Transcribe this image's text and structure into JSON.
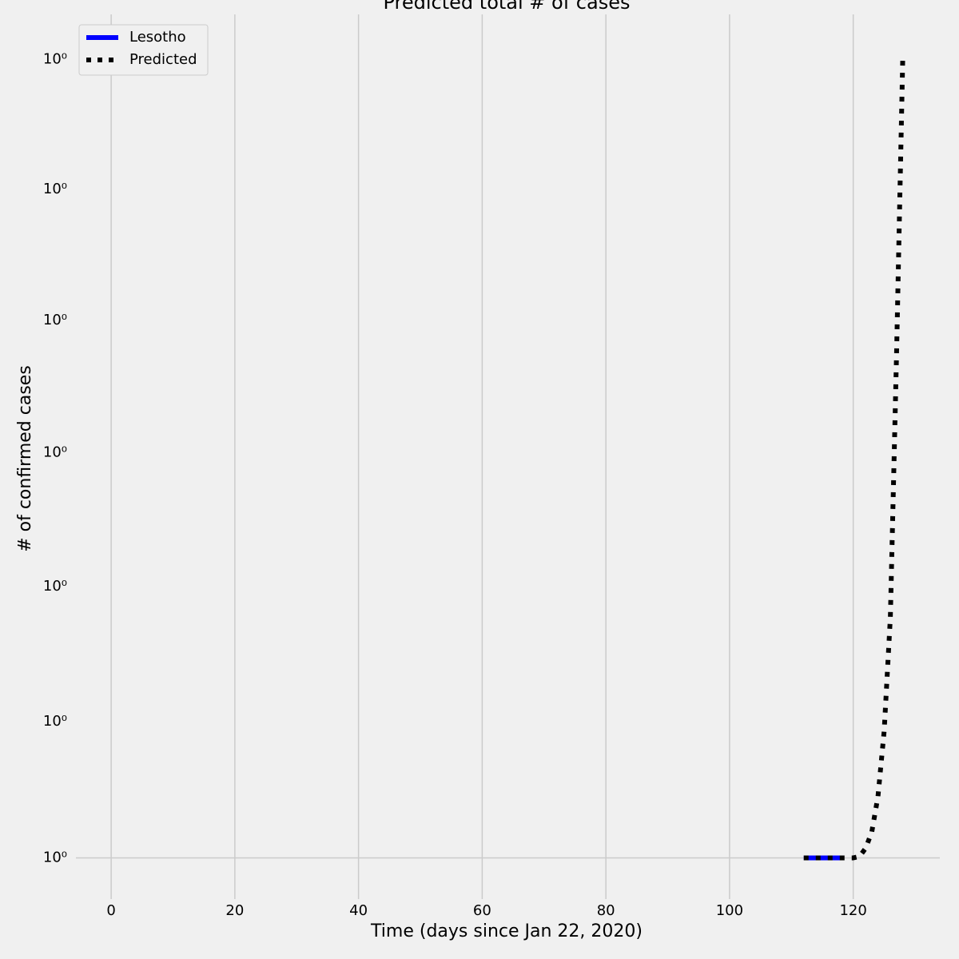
{
  "chart_data": {
    "type": "line",
    "title": "Predicted total # of cases",
    "xlabel": "Time (days since Jan 22, 2020)",
    "ylabel": "# of confirmed cases",
    "xlim": [
      -5.7,
      134
    ],
    "xticks": [
      0,
      20,
      40,
      60,
      80,
      100,
      120
    ],
    "ylim": [
      0.997,
      1.0635
    ],
    "yscale": "log",
    "yticks": [
      {
        "value": 1.0,
        "label": "10⁰"
      }
    ],
    "yminor_ticks": [
      {
        "value": 1.01,
        "label": "10⁰"
      },
      {
        "value": 1.02,
        "label": "10⁰"
      },
      {
        "value": 1.03,
        "label": "10⁰"
      },
      {
        "value": 1.04,
        "label": "10⁰"
      },
      {
        "value": 1.05,
        "label": "10⁰"
      },
      {
        "value": 1.06,
        "label": "10⁰"
      }
    ],
    "grid": true,
    "legend": "upper left",
    "series": [
      {
        "name": "Lesotho",
        "color": "#0000ff",
        "style": "solid",
        "x": [
          112,
          113,
          114,
          115,
          116,
          117,
          118
        ],
        "values": [
          1,
          1,
          1,
          1,
          1,
          1,
          1
        ]
      },
      {
        "name": "Predicted",
        "color": "#000000",
        "style": "dotted",
        "x": [
          112,
          113,
          114,
          115,
          116,
          117,
          118,
          119,
          120,
          121,
          122,
          123,
          124,
          125,
          126,
          127,
          128
        ],
        "values": [
          1,
          1,
          1,
          1,
          1,
          1,
          1,
          1,
          1,
          1.0001,
          1.0007,
          1.0019,
          1.0045,
          1.0093,
          1.0177,
          1.0374,
          1.06
        ]
      }
    ]
  }
}
